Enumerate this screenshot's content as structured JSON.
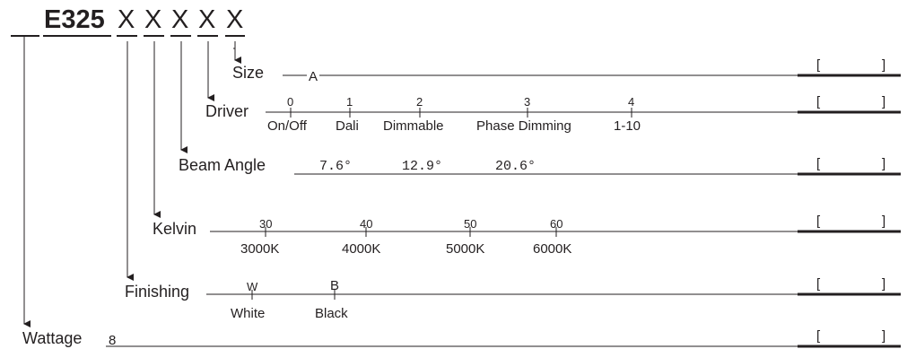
{
  "title": {
    "model": "E325",
    "placeholders": [
      "X",
      "X",
      "X",
      "X",
      "X"
    ]
  },
  "fields": {
    "size": {
      "label": "Size",
      "values": [
        "A"
      ]
    },
    "driver": {
      "label": "Driver",
      "codes": [
        "0",
        "1",
        "2",
        "3",
        "4"
      ],
      "options": [
        "On/Off",
        "Dali",
        "Dimmable",
        "Phase Dimming",
        "1-10"
      ]
    },
    "beam_angle": {
      "label": "Beam Angle",
      "options": [
        "7.6°",
        "12.9°",
        "20.6°"
      ]
    },
    "kelvin": {
      "label": "Kelvin",
      "codes": [
        "30",
        "40",
        "50",
        "60"
      ],
      "options": [
        "3000K",
        "4000K",
        "5000K",
        "6000K"
      ]
    },
    "finishing": {
      "label": "Finishing",
      "codes": [
        "W",
        "B"
      ],
      "options": [
        "White",
        "Black"
      ]
    },
    "wattage": {
      "label": "Wattage",
      "values": [
        "8"
      ]
    }
  },
  "brackets": {
    "open": "[",
    "close": "]"
  },
  "colors": {
    "ink": "#231f20"
  }
}
